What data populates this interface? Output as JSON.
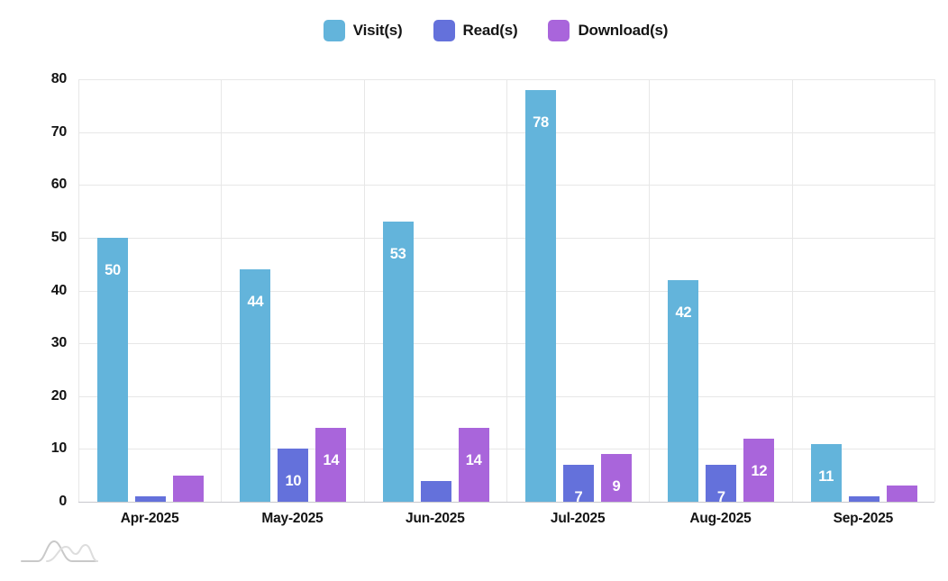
{
  "chart_data": {
    "type": "bar",
    "title": "",
    "xlabel": "",
    "ylabel": "",
    "categories": [
      "Apr-2025",
      "May-2025",
      "Jun-2025",
      "Jul-2025",
      "Aug-2025",
      "Sep-2025"
    ],
    "series": [
      {
        "name": "Visit(s)",
        "color": "#63B4DB",
        "values": [
          50,
          44,
          53,
          78,
          42,
          11
        ]
      },
      {
        "name": "Read(s)",
        "color": "#6471DB",
        "values": [
          1,
          10,
          4,
          7,
          7,
          1
        ]
      },
      {
        "name": "Download(s)",
        "color": "#A965DB",
        "values": [
          5,
          14,
          14,
          9,
          12,
          3
        ]
      }
    ],
    "ylim": [
      0,
      80
    ],
    "ytick_step": 10,
    "ytick_labels": [
      "0",
      "10",
      "20",
      "30",
      "40",
      "50",
      "60",
      "70",
      "80"
    ],
    "grid": true,
    "legend_position": "top-center",
    "bar_value_labels": "white numbers inside bars, hidden for values below 7",
    "label_min_value": 7
  },
  "colors": {
    "background": "#ffffff",
    "grid": "#e7e7e7",
    "axis_line": "#c7c7cd",
    "tick_text": "#141414",
    "bar_label_text": "#ffffff",
    "watermark": "#d4d4d4"
  },
  "watermark": {
    "icon": "overlapping-curves-logo"
  }
}
